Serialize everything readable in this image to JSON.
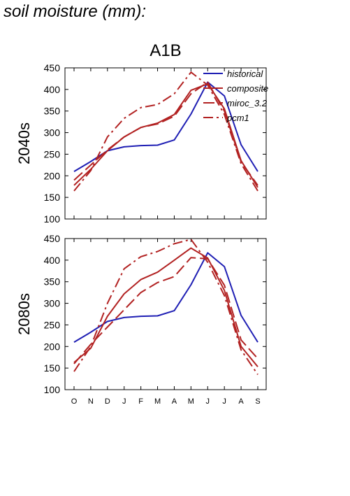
{
  "page_title": "soil moisture (mm):",
  "scenario": "A1B",
  "chart_data": [
    {
      "type": "line",
      "panel_label": "2040s",
      "x": [
        "O",
        "N",
        "D",
        "J",
        "F",
        "M",
        "A",
        "M",
        "J",
        "J",
        "A",
        "S"
      ],
      "ylim": [
        100,
        450
      ],
      "yticks": [
        100,
        150,
        200,
        250,
        300,
        350,
        400,
        450
      ],
      "legend": {
        "position": "top-right",
        "entries": [
          "historical",
          "composite",
          "miroc_3.2",
          "pcm1"
        ]
      },
      "series": [
        {
          "name": "historical",
          "color": "#1f1fb4",
          "dash": "solid",
          "values": [
            210,
            233,
            258,
            267,
            270,
            271,
            283,
            343,
            417,
            385,
            272,
            210
          ]
        },
        {
          "name": "composite",
          "color": "#b22222",
          "dash": "solid",
          "values": [
            178,
            215,
            258,
            290,
            312,
            322,
            342,
            398,
            413,
            355,
            235,
            173
          ]
        },
        {
          "name": "miroc_3.2",
          "color": "#b22222",
          "dash": "dash",
          "values": [
            190,
            225,
            260,
            290,
            312,
            320,
            338,
            390,
            417,
            350,
            232,
            178
          ]
        },
        {
          "name": "pcm1",
          "color": "#b22222",
          "dash": "dashdot",
          "values": [
            165,
            212,
            290,
            333,
            358,
            365,
            390,
            440,
            410,
            342,
            228,
            165
          ]
        }
      ]
    },
    {
      "type": "line",
      "panel_label": "2080s",
      "x": [
        "O",
        "N",
        "D",
        "J",
        "F",
        "M",
        "A",
        "M",
        "J",
        "J",
        "A",
        "S"
      ],
      "ylim": [
        100,
        450
      ],
      "yticks": [
        100,
        150,
        200,
        250,
        300,
        350,
        400,
        450
      ],
      "series": [
        {
          "name": "historical",
          "color": "#1f1fb4",
          "dash": "solid",
          "values": [
            210,
            233,
            258,
            267,
            270,
            271,
            283,
            343,
            417,
            385,
            272,
            210
          ]
        },
        {
          "name": "composite",
          "color": "#b22222",
          "dash": "solid",
          "values": [
            163,
            196,
            270,
            322,
            355,
            372,
            400,
            428,
            405,
            330,
            200,
            153
          ]
        },
        {
          "name": "miroc_3.2",
          "color": "#b22222",
          "dash": "dash",
          "values": [
            160,
            205,
            245,
            285,
            325,
            348,
            362,
            406,
            403,
            342,
            215,
            172
          ]
        },
        {
          "name": "pcm1",
          "color": "#b22222",
          "dash": "dashdot",
          "values": [
            142,
            200,
            300,
            380,
            408,
            420,
            438,
            448,
            395,
            318,
            192,
            135
          ]
        }
      ]
    }
  ]
}
